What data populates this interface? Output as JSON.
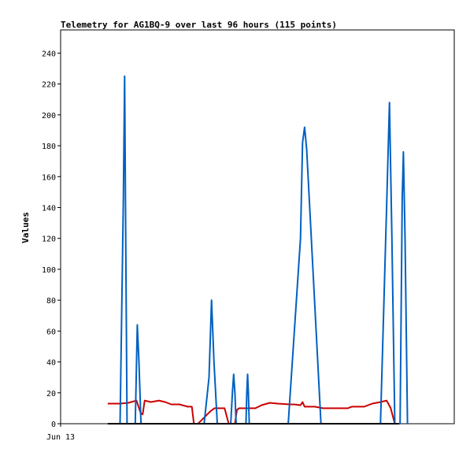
{
  "chart_data": {
    "type": "line",
    "title": "Telemetry for AG1BQ-9 over last 96 hours (115 points)",
    "ylabel": "Values",
    "xlabel": "",
    "x_tick_labels": [
      {
        "label": "Jun 13",
        "x": 0
      }
    ],
    "ylim": [
      0,
      255
    ],
    "yticks": [
      0,
      20,
      40,
      60,
      80,
      100,
      120,
      140,
      160,
      180,
      200,
      220,
      240
    ],
    "xlim": [
      0,
      96
    ],
    "grid": false,
    "legend": "none",
    "series": [
      {
        "color": "#cc0000",
        "points": [
          [
            11.5,
            13
          ],
          [
            14.5,
            13
          ],
          [
            16.5,
            13.5
          ],
          [
            18.5,
            15
          ],
          [
            19.5,
            7
          ],
          [
            20,
            6
          ],
          [
            20.5,
            15
          ],
          [
            22,
            14
          ],
          [
            24,
            15
          ],
          [
            25.5,
            14
          ],
          [
            27,
            12.5
          ],
          [
            29,
            12.5
          ],
          [
            31,
            11
          ],
          [
            32,
            11
          ],
          [
            32.5,
            0
          ],
          [
            33.5,
            0
          ],
          [
            35,
            4
          ],
          [
            36.5,
            8
          ],
          [
            37.5,
            10
          ],
          [
            38,
            10
          ],
          [
            40,
            10
          ],
          [
            41,
            0
          ],
          [
            42.5,
            0
          ],
          [
            43,
            9
          ],
          [
            43.5,
            10
          ],
          [
            46,
            10
          ],
          [
            47.5,
            10
          ],
          [
            49,
            12
          ],
          [
            51,
            13.5
          ],
          [
            53,
            13
          ],
          [
            56,
            12.5
          ],
          [
            57,
            12.5
          ],
          [
            58.5,
            12
          ],
          [
            59,
            14
          ],
          [
            59.5,
            11
          ],
          [
            62,
            11
          ],
          [
            64,
            10
          ],
          [
            66,
            10
          ],
          [
            68,
            10
          ],
          [
            70,
            10
          ],
          [
            71,
            11
          ],
          [
            74,
            11
          ],
          [
            76,
            13
          ],
          [
            78,
            14
          ],
          [
            79.5,
            15
          ],
          [
            80.5,
            10
          ],
          [
            81.5,
            0
          ],
          [
            82,
            0
          ]
        ]
      },
      {
        "color": "#0060c0",
        "points": [
          [
            11.5,
            0
          ],
          [
            14.5,
            0
          ],
          [
            15.3,
            145
          ],
          [
            15.6,
            225
          ],
          [
            15.9,
            112
          ],
          [
            16.2,
            0
          ],
          [
            18.2,
            0
          ],
          [
            18.7,
            64
          ],
          [
            19.1,
            40
          ],
          [
            19.6,
            0
          ],
          [
            35,
            0
          ],
          [
            36.2,
            30
          ],
          [
            36.8,
            80
          ],
          [
            37.4,
            40
          ],
          [
            38.2,
            0
          ],
          [
            41.5,
            0
          ],
          [
            41.9,
            20
          ],
          [
            42.2,
            32
          ],
          [
            42.5,
            20
          ],
          [
            42.8,
            0
          ],
          [
            45.2,
            0
          ],
          [
            45.4,
            20
          ],
          [
            45.6,
            32
          ],
          [
            45.8,
            20
          ],
          [
            46,
            0
          ],
          [
            55.5,
            0
          ],
          [
            58.5,
            120
          ],
          [
            59,
            182
          ],
          [
            59.5,
            192
          ],
          [
            60,
            178
          ],
          [
            63.5,
            0
          ],
          [
            78,
            0
          ],
          [
            79.6,
            150
          ],
          [
            80.2,
            208
          ],
          [
            80.8,
            120
          ],
          [
            81.5,
            0
          ],
          [
            82.8,
            0
          ],
          [
            83.3,
            146
          ],
          [
            83.6,
            176
          ],
          [
            84,
            120
          ],
          [
            84.6,
            0
          ]
        ]
      },
      {
        "color": "#000000",
        "points": [
          [
            11.5,
            0
          ],
          [
            82.5,
            0
          ]
        ]
      }
    ]
  }
}
